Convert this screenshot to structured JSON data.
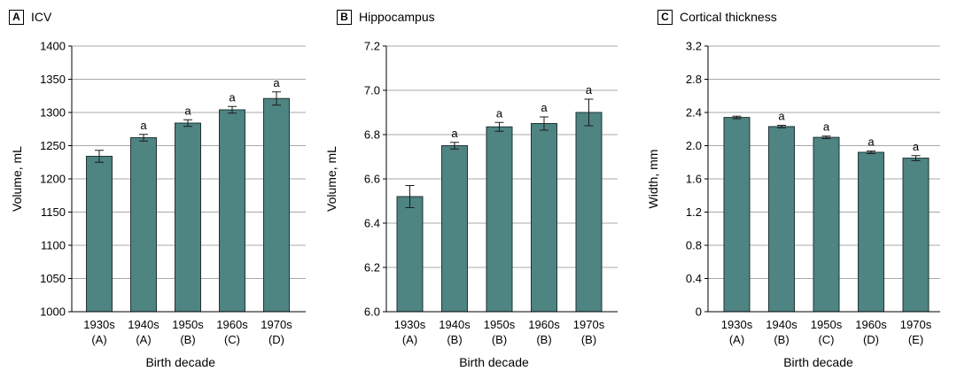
{
  "chart_data": [
    {
      "type": "bar",
      "panel_letter": "A",
      "title": "ICV",
      "xlabel": "Birth decade",
      "ylabel": "Volume, mL",
      "ylim": [
        1000,
        1400
      ],
      "yticks": [
        1000,
        1050,
        1100,
        1150,
        1200,
        1250,
        1300,
        1350,
        1400
      ],
      "ytick_labels": [
        "1000",
        "1050",
        "1100",
        "1150",
        "1200",
        "1250",
        "1300",
        "1350",
        "1400"
      ],
      "categories": [
        "1930s",
        "1940s",
        "1950s",
        "1960s",
        "1970s"
      ],
      "category_groups": [
        "(A)",
        "(A)",
        "(B)",
        "(C)",
        "(D)"
      ],
      "values": [
        1234,
        1262,
        1284,
        1304,
        1321
      ],
      "errors": [
        9,
        5,
        5,
        5,
        10
      ],
      "annotations": [
        "",
        "a",
        "a",
        "a",
        "a"
      ],
      "grid": true,
      "bar_color": "#4e8482"
    },
    {
      "type": "bar",
      "panel_letter": "B",
      "title": "Hippocampus",
      "xlabel": "Birth decade",
      "ylabel": "Volume, mL",
      "ylim": [
        6.0,
        7.2
      ],
      "yticks": [
        6.0,
        6.2,
        6.4,
        6.6,
        6.8,
        7.0,
        7.2
      ],
      "ytick_labels": [
        "6.0",
        "6.2",
        "6.4",
        "6.6",
        "6.8",
        "7.0",
        "7.2"
      ],
      "categories": [
        "1930s",
        "1940s",
        "1950s",
        "1960s",
        "1970s"
      ],
      "category_groups": [
        "(A)",
        "(B)",
        "(B)",
        "(B)",
        "(B)"
      ],
      "values": [
        6.52,
        6.75,
        6.835,
        6.85,
        6.9
      ],
      "errors": [
        0.05,
        0.015,
        0.02,
        0.03,
        0.06
      ],
      "annotations": [
        "",
        "a",
        "a",
        "a",
        "a"
      ],
      "grid": true,
      "bar_color": "#4e8482"
    },
    {
      "type": "bar",
      "panel_letter": "C",
      "title": "Cortical thickness",
      "xlabel": "Birth decade",
      "ylabel": "Width, mm",
      "ylim": [
        0,
        3.2
      ],
      "yticks": [
        0,
        0.4,
        0.8,
        1.2,
        1.6,
        2.0,
        2.4,
        2.8,
        3.2
      ],
      "ytick_labels": [
        "0",
        "0.4",
        "0.8",
        "1.2",
        "1.6",
        "2.0",
        "2.4",
        "2.8",
        "3.2"
      ],
      "categories": [
        "1930s",
        "1940s",
        "1950s",
        "1960s",
        "1970s"
      ],
      "category_groups": [
        "(A)",
        "(B)",
        "(C)",
        "(D)",
        "(E)"
      ],
      "values": [
        2.34,
        2.23,
        2.1,
        1.92,
        1.85
      ],
      "errors": [
        0.015,
        0.015,
        0.015,
        0.015,
        0.03
      ],
      "annotations": [
        "",
        "a",
        "a",
        "a",
        "a"
      ],
      "grid": true,
      "bar_color": "#4e8482"
    }
  ]
}
